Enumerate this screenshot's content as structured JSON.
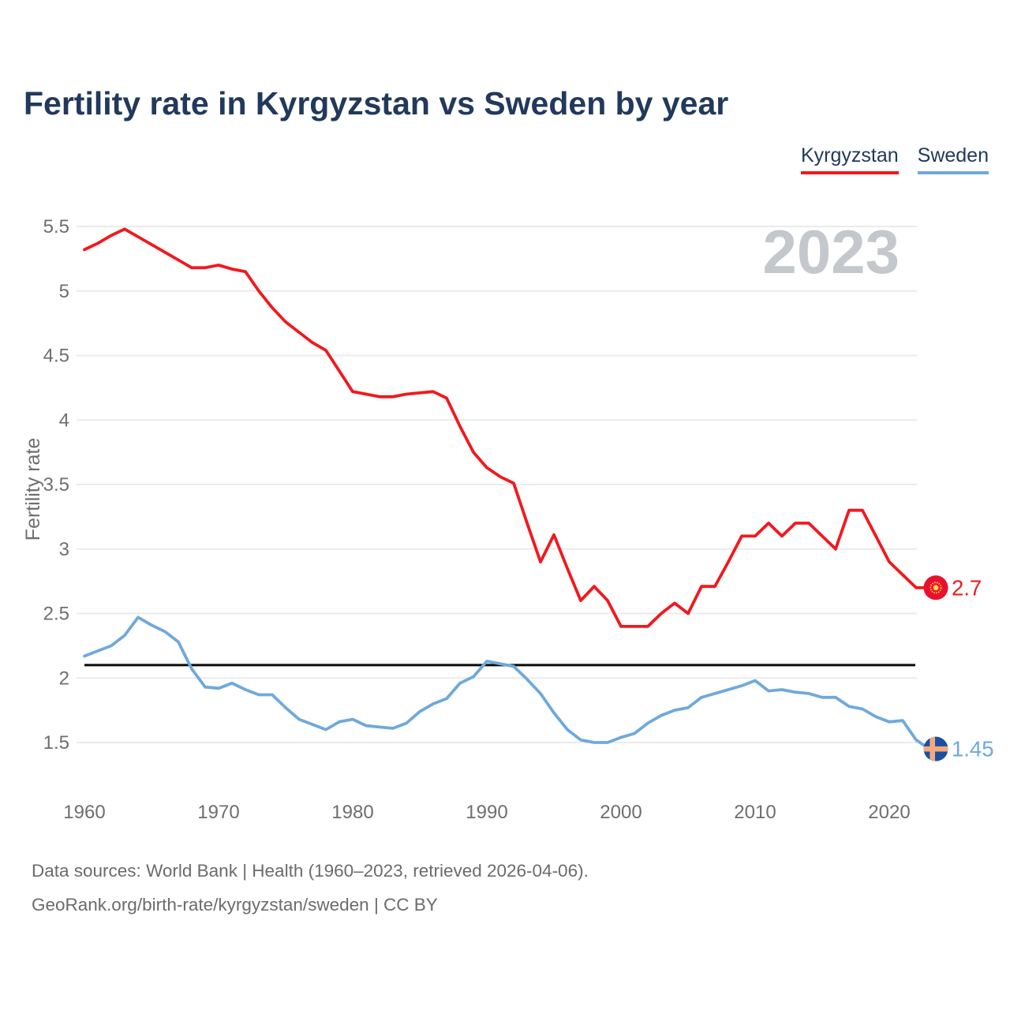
{
  "title": "Fertility rate in Kyrgyzstan vs Sweden by year",
  "legend": {
    "items": [
      {
        "label": "Kyrgyzstan",
        "color": "#f2181d"
      },
      {
        "label": "Sweden",
        "color": "#6fa9dc"
      }
    ]
  },
  "watermark_year": "2023",
  "footer": {
    "line1": "Data sources: World Bank | Health (1960–2023, retrieved 2026-04-06).",
    "line2": "GeoRank.org/birth-rate/kyrgyzstan/sweden | CC BY"
  },
  "chart_data": {
    "type": "line",
    "title": "Fertility rate in Kyrgyzstan vs Sweden by year",
    "xlabel": "",
    "ylabel": "Fertility rate",
    "x": [
      1960,
      1961,
      1962,
      1963,
      1964,
      1965,
      1966,
      1967,
      1968,
      1969,
      1970,
      1971,
      1972,
      1973,
      1974,
      1975,
      1976,
      1977,
      1978,
      1979,
      1980,
      1981,
      1982,
      1983,
      1984,
      1985,
      1986,
      1987,
      1988,
      1989,
      1990,
      1991,
      1992,
      1993,
      1994,
      1995,
      1996,
      1997,
      1998,
      1999,
      2000,
      2001,
      2002,
      2003,
      2004,
      2005,
      2006,
      2007,
      2008,
      2009,
      2010,
      2011,
      2012,
      2013,
      2014,
      2015,
      2016,
      2017,
      2018,
      2019,
      2020,
      2021,
      2022,
      2023
    ],
    "x_ticks": [
      1960,
      1970,
      1980,
      1990,
      2000,
      2010,
      2020
    ],
    "y_ticks": [
      1.5,
      2,
      2.5,
      3,
      3.5,
      4,
      4.5,
      5,
      5.5
    ],
    "ylim": [
      1.1,
      5.65
    ],
    "grid": "horizontal",
    "legend_position": "top-right",
    "reference_line": {
      "value": 2.1,
      "color": "#0a0a0a"
    },
    "series": [
      {
        "name": "Kyrgyzstan",
        "color": "#f2181d",
        "end_label": "2.7",
        "end_value": 2.7,
        "flag": {
          "bg": "#e8122e",
          "emblem": "#ffd24a",
          "style": "sun"
        },
        "values": [
          5.32,
          5.37,
          5.43,
          5.48,
          5.42,
          5.36,
          5.3,
          5.24,
          5.18,
          5.18,
          5.2,
          5.17,
          5.15,
          5.0,
          4.87,
          4.76,
          4.68,
          4.6,
          4.54,
          4.38,
          4.22,
          4.2,
          4.18,
          4.18,
          4.2,
          4.21,
          4.22,
          4.17,
          3.95,
          3.75,
          3.63,
          3.56,
          3.51,
          3.2,
          2.9,
          3.11,
          2.85,
          2.6,
          2.71,
          2.6,
          2.4,
          2.4,
          2.4,
          2.5,
          2.58,
          2.5,
          2.71,
          2.71,
          2.9,
          3.1,
          3.1,
          3.2,
          3.1,
          3.2,
          3.2,
          3.1,
          3.0,
          3.3,
          3.3,
          3.1,
          2.9,
          2.8,
          2.7,
          2.7
        ]
      },
      {
        "name": "Sweden",
        "color": "#6fa9dc",
        "end_label": "1.45",
        "end_value": 1.45,
        "flag": {
          "bg": "#1c4fa0",
          "emblem": "#f2a97e",
          "style": "nordic-cross"
        },
        "values": [
          2.17,
          2.21,
          2.25,
          2.33,
          2.47,
          2.41,
          2.36,
          2.28,
          2.07,
          1.93,
          1.92,
          1.96,
          1.91,
          1.87,
          1.87,
          1.77,
          1.68,
          1.64,
          1.6,
          1.66,
          1.68,
          1.63,
          1.62,
          1.61,
          1.65,
          1.74,
          1.8,
          1.84,
          1.96,
          2.01,
          2.13,
          2.11,
          2.09,
          1.99,
          1.88,
          1.73,
          1.6,
          1.52,
          1.5,
          1.5,
          1.54,
          1.57,
          1.65,
          1.71,
          1.75,
          1.77,
          1.85,
          1.88,
          1.91,
          1.94,
          1.98,
          1.9,
          1.91,
          1.89,
          1.88,
          1.85,
          1.85,
          1.78,
          1.76,
          1.7,
          1.66,
          1.67,
          1.52,
          1.45
        ]
      }
    ]
  },
  "colors": {
    "title": "#21395c",
    "axis_text": "#6e6e6e",
    "gridline": "#ebebeb",
    "watermark": "#c4c7cb"
  }
}
